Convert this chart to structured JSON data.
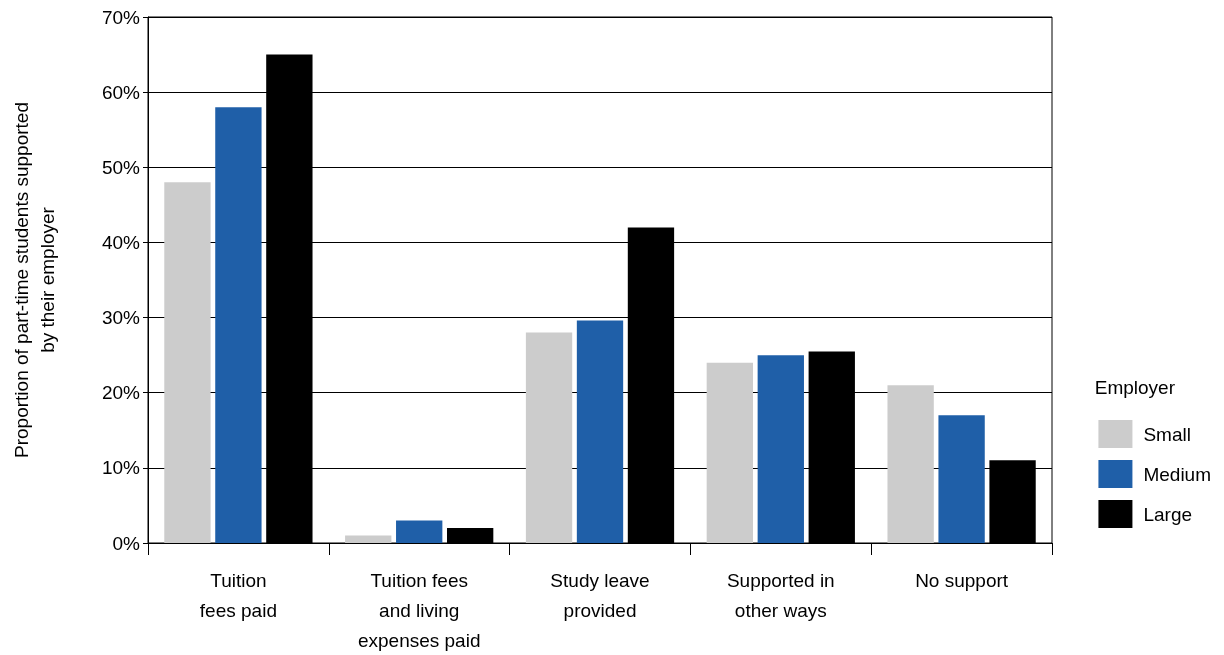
{
  "chart_data": {
    "type": "bar",
    "ylabel": "Proportion of part-time students supported\nby their employer",
    "legend_title": "Employer",
    "categories": [
      "Tuition\nfees paid",
      "Tuition fees\nand living\nexpenses paid",
      "Study leave\nprovided",
      "Supported in\nother ways",
      "No support"
    ],
    "series": [
      {
        "name": "Small",
        "color": "#cccccc",
        "values": [
          48,
          1,
          28,
          24,
          21
        ]
      },
      {
        "name": "Medium",
        "color": "#1f5fa8",
        "values": [
          58,
          3,
          29.6,
          25,
          17
        ]
      },
      {
        "name": "Large",
        "color": "#000000",
        "values": [
          65,
          2,
          42,
          25.5,
          11
        ]
      }
    ],
    "ylim": [
      0,
      70
    ],
    "yticks": [
      {
        "value": 0,
        "label": "0%"
      },
      {
        "value": 10,
        "label": "10%"
      },
      {
        "value": 20,
        "label": "20%"
      },
      {
        "value": 30,
        "label": "30%"
      },
      {
        "value": 40,
        "label": "40%"
      },
      {
        "value": 50,
        "label": "50%"
      },
      {
        "value": 60,
        "label": "60%"
      },
      {
        "value": 70,
        "label": "70%"
      }
    ],
    "grid": "y",
    "legend": "right"
  }
}
